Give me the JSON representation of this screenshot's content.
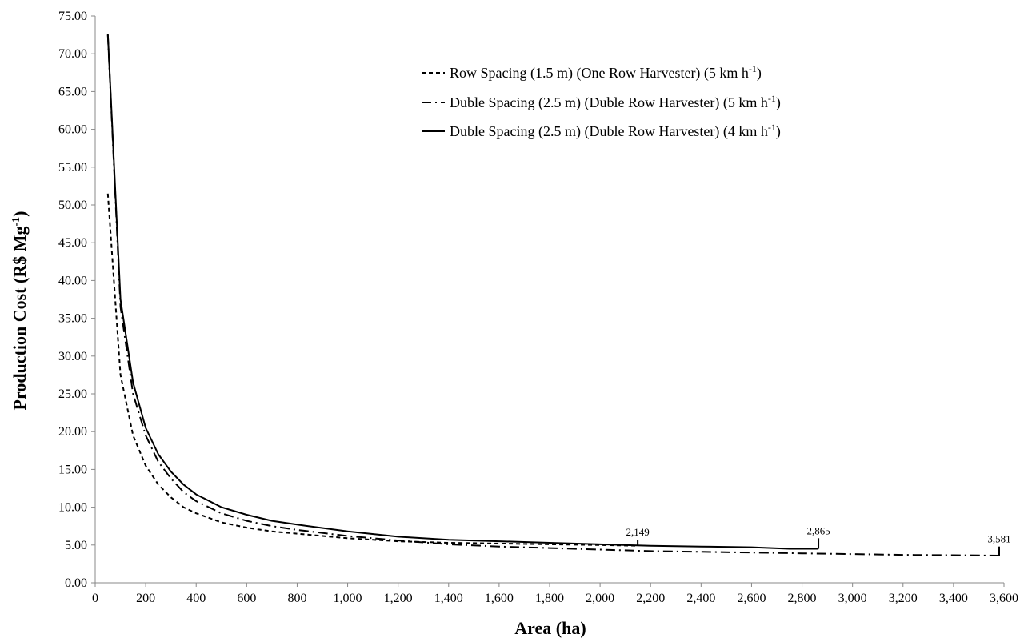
{
  "chart_data": {
    "type": "line",
    "title": "",
    "xlabel": "Area (ha)",
    "ylabel_main": "Production Cost (R$ Mg",
    "ylabel_sup": "-1",
    "ylabel_close": ")",
    "xlim": [
      0,
      3600
    ],
    "ylim": [
      0,
      75
    ],
    "x_ticks": [
      "0",
      "200",
      "400",
      "600",
      "800",
      "1,000",
      "1,200",
      "1,400",
      "1,600",
      "1,800",
      "2,000",
      "2,200",
      "2,400",
      "2,600",
      "2,800",
      "3,000",
      "3,200",
      "3,400",
      "3,600"
    ],
    "y_ticks": [
      "0.00",
      "5.00",
      "10.00",
      "15.00",
      "20.00",
      "25.00",
      "30.00",
      "35.00",
      "40.00",
      "45.00",
      "50.00",
      "55.00",
      "60.00",
      "65.00",
      "70.00",
      "75.00"
    ],
    "grid": false,
    "legend_position": "top-right",
    "series": [
      {
        "name": "Row Spacing (1.5 m) (One Row Harvester) (5 km h",
        "name_sup": "-1",
        "name_close": ")",
        "style": "dashed",
        "x": [
          50,
          100,
          150,
          200,
          250,
          300,
          350,
          400,
          500,
          600,
          700,
          800,
          1000,
          1200,
          1400,
          1600,
          1800,
          2000,
          2149
        ],
        "y": [
          51.5,
          27.5,
          19.5,
          15.5,
          13.0,
          11.3,
          10.0,
          9.2,
          8.0,
          7.3,
          6.8,
          6.5,
          5.9,
          5.5,
          5.3,
          5.2,
          5.1,
          5.0,
          4.9
        ]
      },
      {
        "name": "Duble Spacing (2.5 m) (Duble Row Harvester) (5 km h",
        "name_sup": "-1",
        "name_close": ")",
        "style": "dashdot",
        "x": [
          50,
          100,
          150,
          200,
          250,
          300,
          350,
          400,
          500,
          600,
          700,
          800,
          1000,
          1200,
          1400,
          1600,
          1800,
          2000,
          2200,
          2400,
          2600,
          2800,
          3000,
          3200,
          3400,
          3581
        ],
        "y": [
          72.5,
          36.5,
          25.0,
          19.5,
          16.0,
          13.8,
          12.0,
          10.8,
          9.2,
          8.2,
          7.5,
          7.0,
          6.2,
          5.6,
          5.1,
          4.8,
          4.6,
          4.4,
          4.2,
          4.1,
          4.0,
          3.9,
          3.8,
          3.7,
          3.65,
          3.6
        ]
      },
      {
        "name": "Duble Spacing (2.5 m) (Duble Row Harvester) (4 km h",
        "name_sup": "-1",
        "name_close": ")",
        "style": "solid",
        "x": [
          50,
          100,
          150,
          200,
          250,
          300,
          350,
          400,
          500,
          600,
          700,
          800,
          1000,
          1200,
          1400,
          1600,
          1800,
          2000,
          2200,
          2400,
          2600,
          2750,
          2865
        ],
        "y": [
          72.6,
          37.5,
          26.5,
          20.5,
          17.0,
          14.7,
          13.0,
          11.7,
          10.0,
          9.0,
          8.2,
          7.7,
          6.8,
          6.1,
          5.7,
          5.5,
          5.3,
          5.1,
          4.9,
          4.8,
          4.7,
          4.5,
          4.5
        ]
      }
    ],
    "annotations": [
      {
        "text": "2,149",
        "x": 2149,
        "y_start": 4.9,
        "y_end": 5.7
      },
      {
        "text": "2,865",
        "x": 2865,
        "y_start": 4.5,
        "y_end": 5.9
      },
      {
        "text": "3,581",
        "x": 3581,
        "y_start": 3.6,
        "y_end": 4.8
      }
    ]
  }
}
